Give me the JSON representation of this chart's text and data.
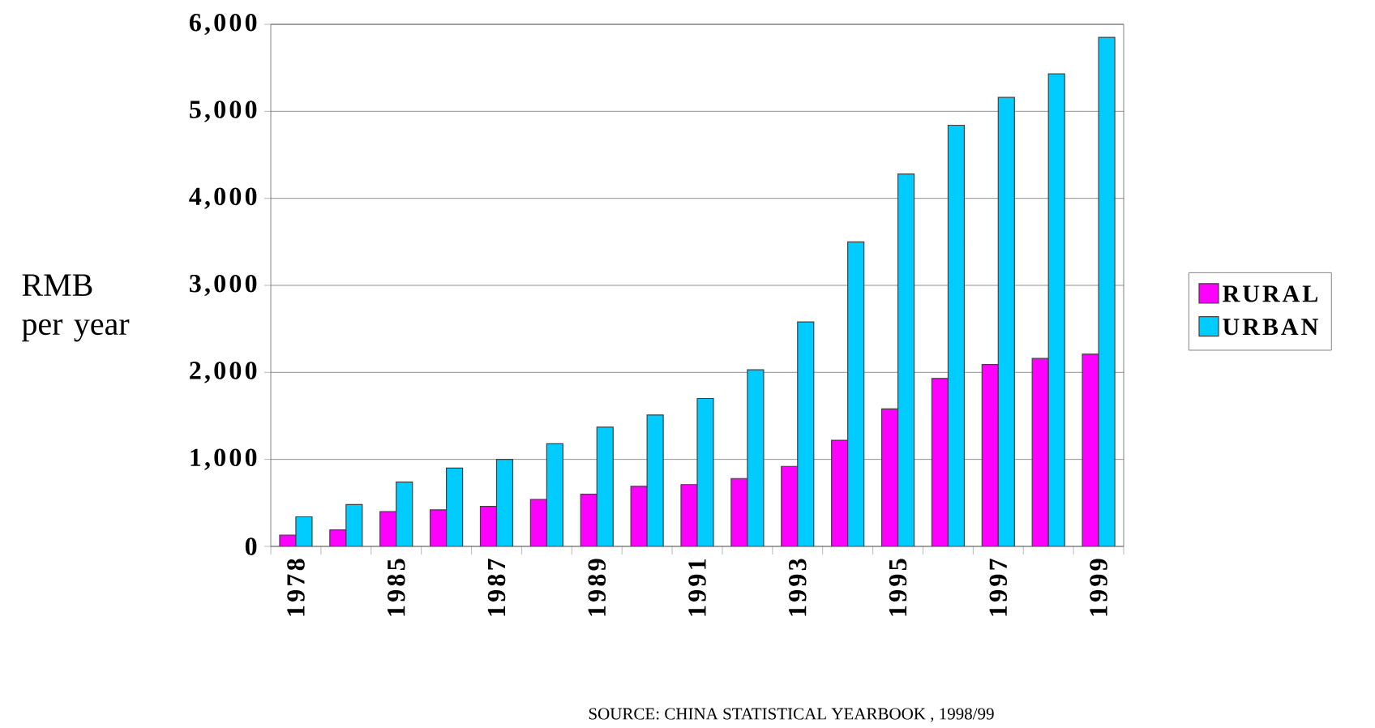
{
  "chart_data": {
    "type": "bar",
    "categories": [
      "1978",
      null,
      "1985",
      null,
      "1987",
      null,
      "1989",
      null,
      "1991",
      null,
      "1993",
      null,
      "1995",
      null,
      "1997",
      null,
      "1999"
    ],
    "series": [
      {
        "name": "RURAL",
        "color": "#ff00ff",
        "values": [
          130,
          190,
          400,
          420,
          460,
          540,
          600,
          690,
          710,
          780,
          920,
          1220,
          1580,
          1930,
          2090,
          2160,
          2210
        ]
      },
      {
        "name": "URBAN",
        "color": "#00ccff",
        "values": [
          340,
          480,
          740,
          900,
          1000,
          1180,
          1370,
          1510,
          1700,
          2030,
          2580,
          3500,
          4280,
          4840,
          5160,
          5430,
          5850
        ]
      }
    ],
    "ylabel": "RMB per year",
    "ylim": [
      0,
      6000
    ],
    "yticks": [
      0,
      {
        "value": 1000,
        "label": "1,000"
      },
      {
        "value": 2000,
        "label": "2,000"
      },
      {
        "value": 3000,
        "label": "3,000"
      },
      {
        "value": 4000,
        "label": "4,000"
      },
      {
        "value": 5000,
        "label": "5,000"
      },
      {
        "value": 6000,
        "label": "6,000"
      }
    ],
    "grid": "y",
    "legend": "right",
    "annotations": [
      "SOURCE: CHINA STATISTICAL YEARBOOK , 1998/99"
    ]
  }
}
